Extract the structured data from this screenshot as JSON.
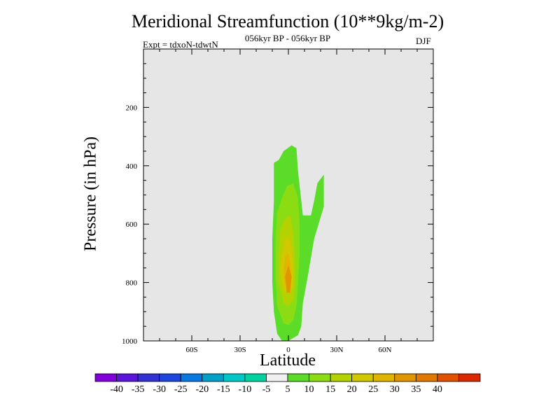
{
  "chart_data": {
    "type": "contour",
    "title": "Meridional Streamfunction (10**9kg/m-2)",
    "subtitle": "056kyr BP - 056kyr BP",
    "experiment_label": "Expt = tdxoN-tdwtN",
    "season_label": "DJF",
    "xlabel": "Latitude",
    "ylabel": "Pressure (in hPa)",
    "x_ticks": [
      {
        "value": -60,
        "label": "60S"
      },
      {
        "value": -30,
        "label": "30S"
      },
      {
        "value": 0,
        "label": "0"
      },
      {
        "value": 30,
        "label": "30N"
      },
      {
        "value": 60,
        "label": "60N"
      }
    ],
    "y_ticks": [
      {
        "value": 200,
        "label": "200"
      },
      {
        "value": 400,
        "label": "400"
      },
      {
        "value": 600,
        "label": "600"
      },
      {
        "value": 800,
        "label": "800"
      },
      {
        "value": 1000,
        "label": "1000"
      }
    ],
    "xlim": [
      -90,
      90
    ],
    "ylim": [
      1000,
      0
    ],
    "background_color": "#e6e6e6",
    "colorbar": {
      "colors": [
        "#8200dc",
        "#5a14dc",
        "#3232d2",
        "#1e46dc",
        "#0a78e1",
        "#00a0c8",
        "#00c8c8",
        "#00d2a0",
        "#f0f0f0",
        "#5adc28",
        "#8cdc14",
        "#b4d200",
        "#d2c800",
        "#e1b400",
        "#e19600",
        "#e17800",
        "#e15000",
        "#dc2800"
      ],
      "labels": [
        "-40",
        "-35",
        "-30",
        "-25",
        "-20",
        "-15",
        "-10",
        "-5",
        "5",
        "10",
        "15",
        "20",
        "25",
        "30",
        "35",
        "40"
      ]
    },
    "contours": [
      {
        "level": 5,
        "color": "#5adc28",
        "points": [
          [
            -4,
            1000
          ],
          [
            -7,
            975
          ],
          [
            -9,
            900
          ],
          [
            -10,
            800
          ],
          [
            -10,
            650
          ],
          [
            -9,
            520
          ],
          [
            -9,
            390
          ],
          [
            -6,
            380
          ],
          [
            -3,
            350
          ],
          [
            2,
            330
          ],
          [
            5,
            340
          ],
          [
            6,
            420
          ],
          [
            8,
            520
          ],
          [
            9,
            570
          ],
          [
            14,
            570
          ],
          [
            16,
            520
          ],
          [
            18,
            460
          ],
          [
            22,
            430
          ],
          [
            22,
            540
          ],
          [
            16,
            650
          ],
          [
            12,
            780
          ],
          [
            9,
            870
          ],
          [
            8,
            950
          ],
          [
            6,
            980
          ],
          [
            0,
            1000
          ]
        ]
      },
      {
        "level": 10,
        "color": "#8cdc14",
        "points": [
          [
            -3,
            940
          ],
          [
            -7,
            880
          ],
          [
            -8,
            780
          ],
          [
            -8,
            650
          ],
          [
            -7,
            560
          ],
          [
            -4,
            510
          ],
          [
            -1,
            470
          ],
          [
            3,
            460
          ],
          [
            6,
            510
          ],
          [
            7,
            600
          ],
          [
            7,
            700
          ],
          [
            6,
            800
          ],
          [
            5,
            880
          ],
          [
            3,
            930
          ],
          [
            0,
            945
          ]
        ]
      },
      {
        "level": 15,
        "color": "#b4d200",
        "points": [
          [
            -3,
            870
          ],
          [
            -6,
            800
          ],
          [
            -6,
            700
          ],
          [
            -5,
            620
          ],
          [
            -2,
            580
          ],
          [
            1,
            570
          ],
          [
            3,
            620
          ],
          [
            4,
            720
          ],
          [
            4,
            800
          ],
          [
            3,
            860
          ],
          [
            0,
            880
          ]
        ]
      },
      {
        "level": 20,
        "color": "#d2c800",
        "points": [
          [
            -3,
            830
          ],
          [
            -5,
            760
          ],
          [
            -4,
            700
          ],
          [
            -2,
            650
          ],
          [
            0,
            640
          ],
          [
            2,
            680
          ],
          [
            3,
            750
          ],
          [
            3,
            810
          ],
          [
            1,
            840
          ]
        ]
      },
      {
        "level": 25,
        "color": "#e1b400",
        "points": [
          [
            -2,
            810
          ],
          [
            -3,
            760
          ],
          [
            -2,
            710
          ],
          [
            0,
            700
          ],
          [
            1,
            730
          ],
          [
            2,
            780
          ],
          [
            1,
            810
          ]
        ]
      },
      {
        "level": 30,
        "color": "#e19600",
        "points": [
          [
            -1,
            835
          ],
          [
            -2,
            780
          ],
          [
            0,
            740
          ],
          [
            2,
            780
          ],
          [
            1,
            835
          ]
        ]
      }
    ]
  }
}
